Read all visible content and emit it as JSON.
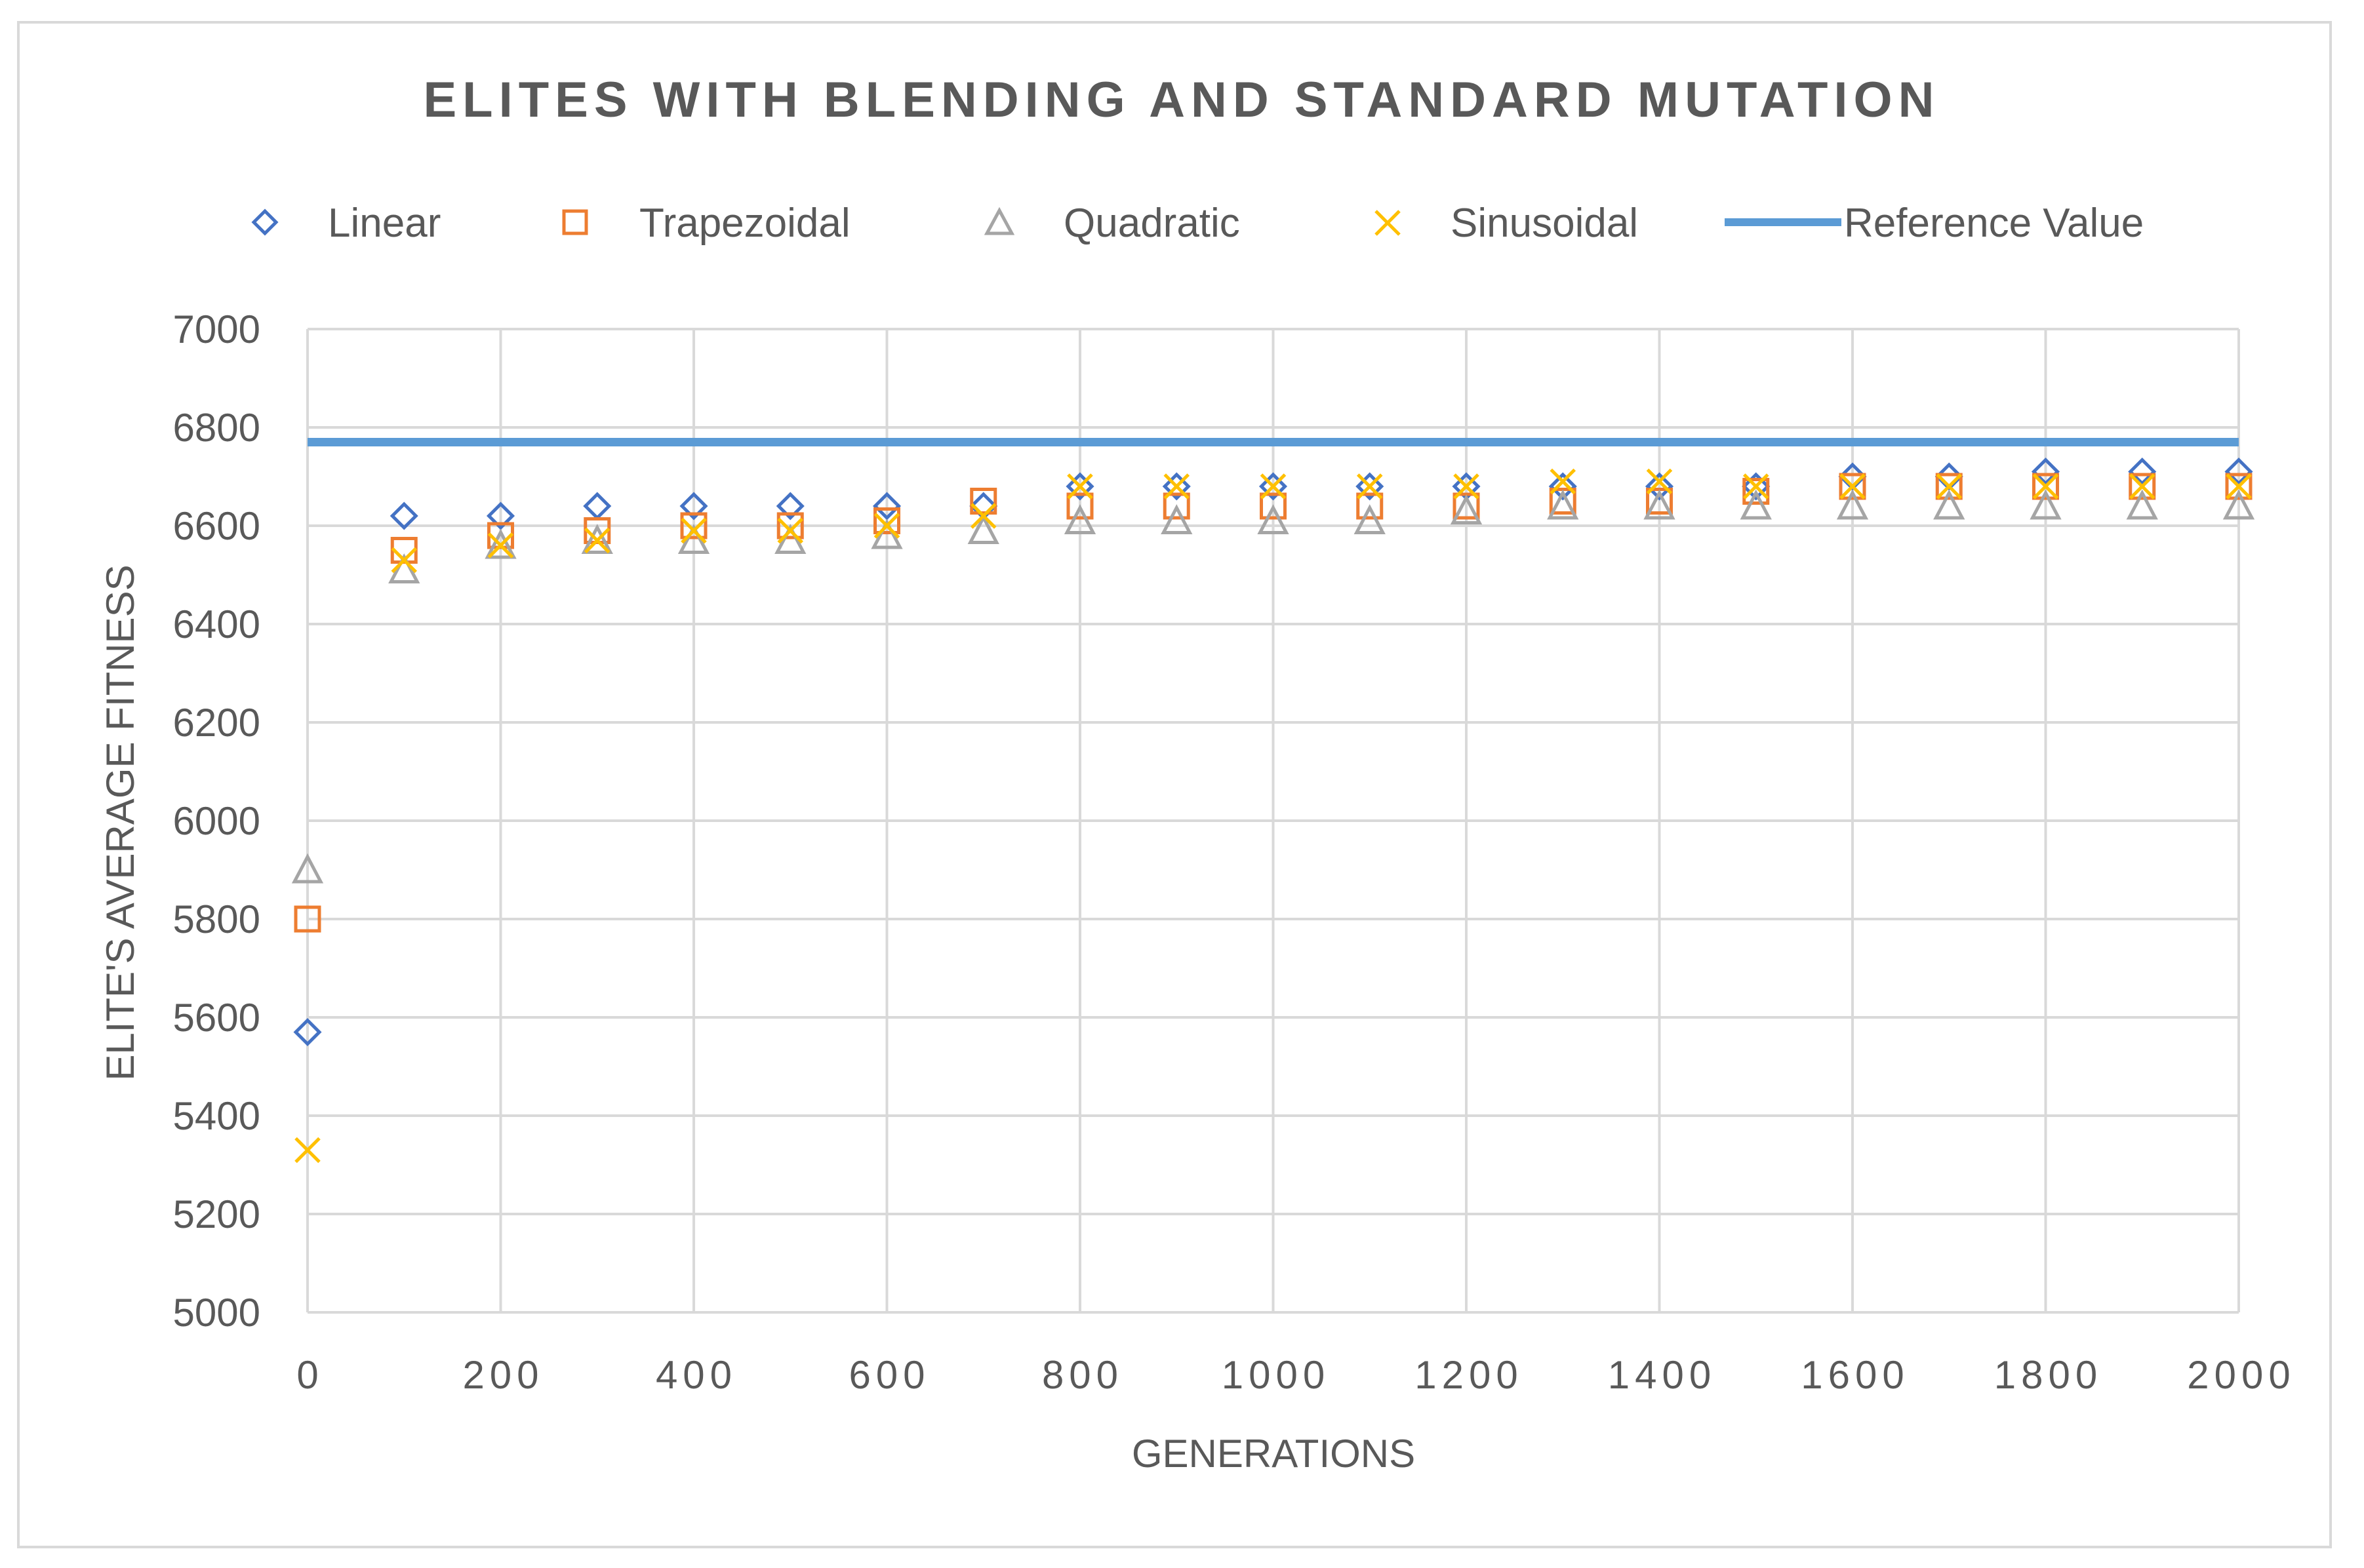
{
  "chart_data": {
    "type": "scatter",
    "title": "ELITES WITH BLENDING AND STANDARD MUTATION",
    "xlabel": "GENERATIONS",
    "ylabel": "ELITE'S AVERAGE FITNESS",
    "xlim": [
      0,
      2000
    ],
    "ylim": [
      5000,
      7000
    ],
    "x_ticks": [
      0,
      200,
      400,
      600,
      800,
      1000,
      1200,
      1400,
      1600,
      1800,
      2000
    ],
    "y_ticks": [
      5000,
      5200,
      5400,
      5600,
      5800,
      6000,
      6200,
      6400,
      6600,
      6800,
      7000
    ],
    "grid": true,
    "legend_position": "top",
    "x": [
      0,
      100,
      200,
      300,
      400,
      500,
      600,
      700,
      800,
      900,
      1000,
      1100,
      1200,
      1300,
      1400,
      1500,
      1600,
      1700,
      1800,
      1900,
      2000
    ],
    "series": [
      {
        "name": "Linear",
        "marker": "diamond",
        "color": "#4472c4",
        "values": [
          5570,
          6620,
          6620,
          6640,
          6640,
          6640,
          6640,
          6640,
          6680,
          6680,
          6680,
          6680,
          6680,
          6680,
          6680,
          6680,
          6700,
          6700,
          6710,
          6710,
          6710
        ]
      },
      {
        "name": "Trapezoidal",
        "marker": "square",
        "color": "#ed7d31",
        "values": [
          5800,
          6550,
          6580,
          6590,
          6600,
          6600,
          6610,
          6650,
          6640,
          6640,
          6640,
          6640,
          6640,
          6650,
          6650,
          6670,
          6680,
          6680,
          6680,
          6680,
          6680
        ]
      },
      {
        "name": "Quadratic",
        "marker": "triangle",
        "color": "#a5a5a5",
        "values": [
          5900,
          6510,
          6560,
          6570,
          6570,
          6570,
          6580,
          6590,
          6610,
          6610,
          6610,
          6610,
          6630,
          6640,
          6640,
          6640,
          6640,
          6640,
          6640,
          6640,
          6640
        ]
      },
      {
        "name": "Sinusoidal",
        "marker": "x",
        "color": "#ffc000",
        "values": [
          5330,
          6530,
          6560,
          6570,
          6590,
          6590,
          6600,
          6620,
          6680,
          6680,
          6680,
          6680,
          6680,
          6690,
          6690,
          6680,
          6680,
          6680,
          6680,
          6680,
          6680
        ]
      }
    ],
    "reference": {
      "name": "Reference Value",
      "value": 6770,
      "color": "#5b9bd5"
    }
  }
}
